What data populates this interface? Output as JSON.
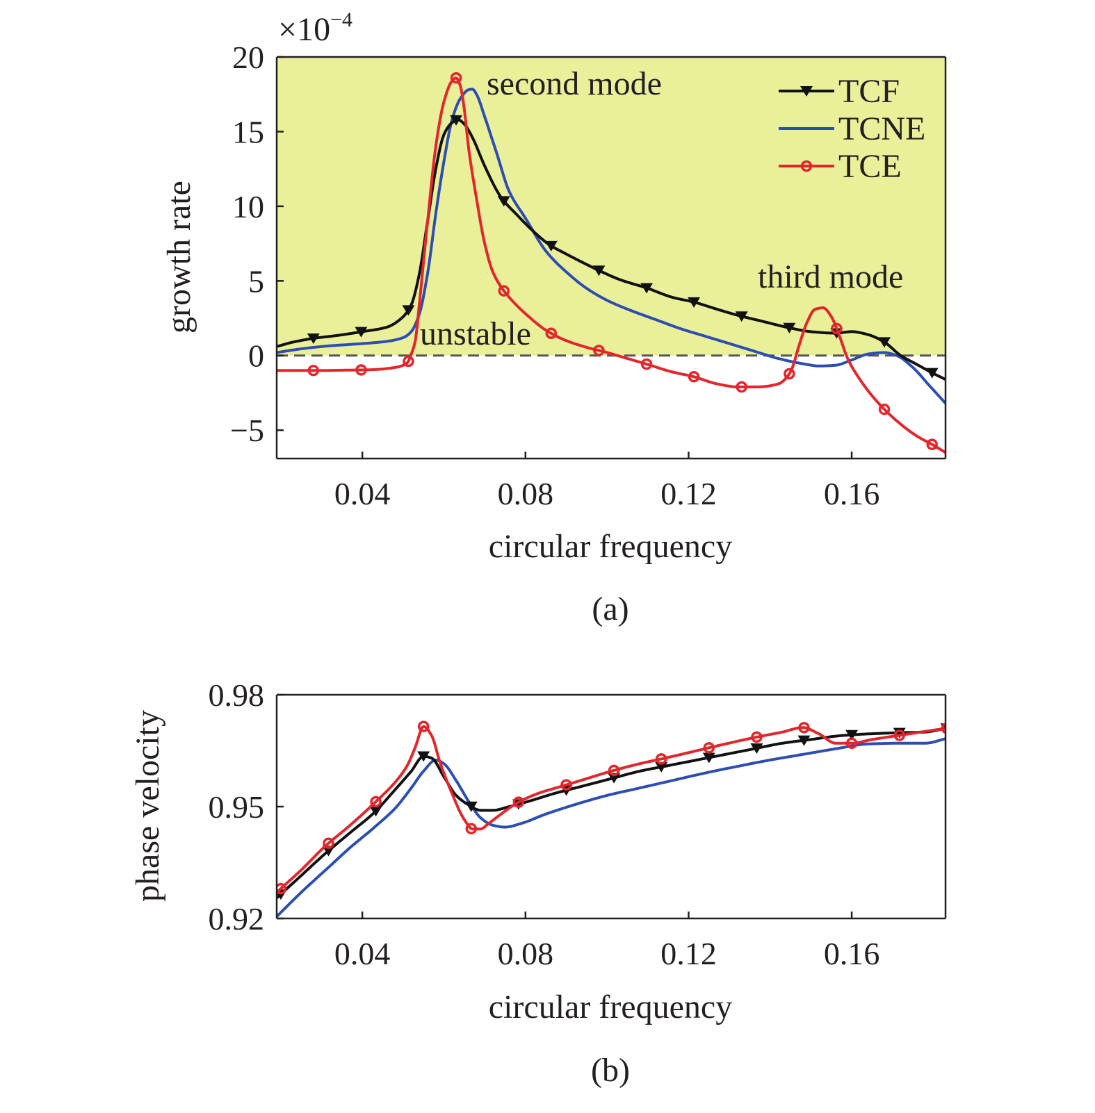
{
  "colors": {
    "unstable_fill": "#eaef9a",
    "TCF": "#111111",
    "TCNE": "#2c4db2",
    "TCE": "#e3262b",
    "zero_line": "#555555",
    "axis": "#231f20"
  },
  "chart_data": [
    {
      "type": "line",
      "caption": "(a)",
      "xlabel": "circular frequency",
      "ylabel": "growth rate",
      "y_multiplier": "×10",
      "y_exponent": "−4",
      "xlim": [
        0.019,
        0.183
      ],
      "ylim": [
        -6.9,
        20
      ],
      "xticks": [
        0.04,
        0.08,
        0.12,
        0.16
      ],
      "xtick_labels": [
        "0.04",
        "0.08",
        "0.12",
        "0.16"
      ],
      "yticks": [
        -5,
        0,
        5,
        10,
        15,
        20
      ],
      "ytick_labels": [
        "−5",
        "0",
        "5",
        "10",
        "15",
        "20"
      ],
      "shaded_region": {
        "label": "unstable",
        "y_from": 0,
        "y_to": 20
      },
      "zero_line": true,
      "annotations": [
        {
          "text": "second mode",
          "x": 0.077,
          "y": 18.1
        },
        {
          "text": "third mode",
          "x": 0.1432,
          "y": 5.0
        },
        {
          "text": "unstable",
          "x": 0.0525,
          "y": 1.0
        }
      ],
      "legend": {
        "position": "top-right",
        "entries": [
          "TCF",
          "TCNE",
          "TCE"
        ]
      },
      "series": [
        {
          "name": "TCF",
          "marker": "triangle-down",
          "x": [
            0.019,
            0.023,
            0.028,
            0.034,
            0.04,
            0.046,
            0.05,
            0.052,
            0.054,
            0.056,
            0.058,
            0.06,
            0.062,
            0.0635,
            0.065,
            0.067,
            0.07,
            0.074,
            0.078,
            0.082,
            0.086,
            0.09,
            0.095,
            0.098,
            0.103,
            0.11,
            0.116,
            0.121,
            0.127,
            0.132,
            0.138,
            0.144,
            0.15,
            0.156,
            0.16,
            0.164,
            0.168,
            0.172,
            0.176,
            0.18,
            0.183
          ],
          "y": [
            0.6,
            0.9,
            1.15,
            1.35,
            1.6,
            1.9,
            2.6,
            3.4,
            5.5,
            9.0,
            12.5,
            14.8,
            15.6,
            15.8,
            15.5,
            14.6,
            12.7,
            10.6,
            9.4,
            8.3,
            7.4,
            6.8,
            6.1,
            5.7,
            5.1,
            4.5,
            3.9,
            3.6,
            3.1,
            2.7,
            2.3,
            1.9,
            1.6,
            1.5,
            1.6,
            1.4,
            0.9,
            0.0,
            -0.6,
            -1.2,
            -1.6
          ],
          "marker_x": [
            0.028,
            0.0397,
            0.0513,
            0.063,
            0.0747,
            0.0863,
            0.098,
            0.1097,
            0.1213,
            0.133,
            0.1447,
            0.1563,
            0.168,
            0.1797
          ]
        },
        {
          "name": "TCNE",
          "marker": "none",
          "x": [
            0.019,
            0.025,
            0.032,
            0.04,
            0.046,
            0.05,
            0.052,
            0.054,
            0.056,
            0.058,
            0.06,
            0.062,
            0.064,
            0.066,
            0.067,
            0.068,
            0.07,
            0.073,
            0.076,
            0.08,
            0.085,
            0.09,
            0.095,
            0.1,
            0.106,
            0.112,
            0.118,
            0.124,
            0.13,
            0.136,
            0.142,
            0.148,
            0.152,
            0.156,
            0.16,
            0.164,
            0.168,
            0.171,
            0.175,
            0.179,
            0.183
          ],
          "y": [
            0.2,
            0.45,
            0.65,
            0.8,
            0.95,
            1.2,
            1.6,
            2.8,
            5.5,
            9.5,
            13.0,
            15.8,
            17.2,
            17.8,
            17.85,
            17.5,
            16.0,
            13.5,
            11.0,
            9.2,
            7.0,
            5.6,
            4.5,
            3.7,
            3.0,
            2.4,
            1.8,
            1.3,
            0.8,
            0.3,
            -0.2,
            -0.55,
            -0.7,
            -0.65,
            -0.3,
            0.1,
            0.2,
            0.0,
            -0.8,
            -2.0,
            -3.2
          ],
          "marker_x": []
        },
        {
          "name": "TCE",
          "marker": "circle",
          "x": [
            0.019,
            0.025,
            0.03,
            0.036,
            0.042,
            0.048,
            0.051,
            0.052,
            0.053,
            0.054,
            0.056,
            0.058,
            0.06,
            0.062,
            0.063,
            0.064,
            0.065,
            0.066,
            0.068,
            0.07,
            0.072,
            0.074,
            0.077,
            0.08,
            0.085,
            0.09,
            0.095,
            0.1,
            0.105,
            0.11,
            0.116,
            0.121,
            0.127,
            0.132,
            0.137,
            0.142,
            0.145,
            0.147,
            0.149,
            0.151,
            0.153,
            0.155,
            0.157,
            0.159,
            0.162,
            0.165,
            0.168,
            0.172,
            0.176,
            0.18,
            0.183
          ],
          "y": [
            -1.0,
            -1.0,
            -1.0,
            -0.98,
            -0.95,
            -0.8,
            -0.5,
            0.1,
            1.0,
            3.5,
            9.0,
            14.0,
            17.0,
            18.4,
            18.6,
            18.1,
            16.5,
            14.0,
            10.5,
            7.5,
            5.6,
            4.6,
            3.6,
            2.8,
            1.7,
            1.0,
            0.55,
            0.2,
            -0.2,
            -0.6,
            -1.1,
            -1.4,
            -1.9,
            -2.1,
            -2.1,
            -1.9,
            -1.1,
            0.6,
            2.2,
            3.1,
            3.2,
            2.6,
            1.3,
            -0.2,
            -1.6,
            -2.7,
            -3.6,
            -4.6,
            -5.4,
            -6.0,
            -6.5
          ],
          "marker_x": [
            0.028,
            0.0397,
            0.0513,
            0.063,
            0.0747,
            0.0863,
            0.098,
            0.1097,
            0.1213,
            0.133,
            0.1447,
            0.1563,
            0.168,
            0.1797
          ]
        }
      ]
    },
    {
      "type": "line",
      "caption": "(b)",
      "xlabel": "circular frequency",
      "ylabel": "phase velocity",
      "xlim": [
        0.019,
        0.183
      ],
      "ylim": [
        0.92,
        0.98
      ],
      "xticks": [
        0.04,
        0.08,
        0.12,
        0.16
      ],
      "xtick_labels": [
        "0.04",
        "0.08",
        "0.12",
        "0.16"
      ],
      "yticks": [
        0.92,
        0.95,
        0.98
      ],
      "ytick_labels": [
        "0.92",
        "0.95",
        "0.98"
      ],
      "series": [
        {
          "name": "TCF",
          "marker": "triangle-down",
          "x": [
            0.019,
            0.025,
            0.031,
            0.037,
            0.043,
            0.048,
            0.052,
            0.055,
            0.057,
            0.06,
            0.063,
            0.066,
            0.069,
            0.072,
            0.076,
            0.081,
            0.087,
            0.094,
            0.101,
            0.108,
            0.115,
            0.122,
            0.129,
            0.136,
            0.143,
            0.15,
            0.157,
            0.164,
            0.171,
            0.178,
            0.183
          ],
          "y": [
            0.9255,
            0.9315,
            0.9375,
            0.943,
            0.9485,
            0.9545,
            0.9595,
            0.9635,
            0.963,
            0.958,
            0.953,
            0.9505,
            0.949,
            0.949,
            0.95,
            0.9515,
            0.9535,
            0.9555,
            0.9575,
            0.9595,
            0.961,
            0.9625,
            0.964,
            0.9655,
            0.967,
            0.968,
            0.969,
            0.9695,
            0.9698,
            0.97,
            0.971
          ],
          "marker_x": [
            0.02,
            0.0317,
            0.0433,
            0.055,
            0.0667,
            0.0783,
            0.09,
            0.1017,
            0.1133,
            0.125,
            0.1367,
            0.1483,
            0.16,
            0.1717,
            0.1833
          ]
        },
        {
          "name": "TCNE",
          "marker": "none",
          "x": [
            0.019,
            0.025,
            0.031,
            0.037,
            0.043,
            0.048,
            0.052,
            0.055,
            0.058,
            0.06,
            0.063,
            0.066,
            0.069,
            0.072,
            0.075,
            0.079,
            0.085,
            0.092,
            0.1,
            0.108,
            0.116,
            0.124,
            0.132,
            0.14,
            0.148,
            0.156,
            0.164,
            0.172,
            0.178,
            0.183
          ],
          "y": [
            0.9205,
            0.927,
            0.933,
            0.939,
            0.9445,
            0.9495,
            0.955,
            0.9595,
            0.9625,
            0.9615,
            0.957,
            0.9515,
            0.947,
            0.945,
            0.9445,
            0.9455,
            0.948,
            0.9505,
            0.953,
            0.955,
            0.957,
            0.959,
            0.9608,
            0.9625,
            0.964,
            0.9655,
            0.9668,
            0.967,
            0.967,
            0.9682
          ],
          "marker_x": []
        },
        {
          "name": "TCE",
          "marker": "circle",
          "x": [
            0.019,
            0.025,
            0.031,
            0.037,
            0.043,
            0.048,
            0.051,
            0.053,
            0.055,
            0.057,
            0.059,
            0.062,
            0.065,
            0.067,
            0.069,
            0.071,
            0.074,
            0.078,
            0.083,
            0.089,
            0.095,
            0.101,
            0.108,
            0.115,
            0.122,
            0.129,
            0.136,
            0.143,
            0.148,
            0.152,
            0.156,
            0.16,
            0.165,
            0.171,
            0.177,
            0.183
          ],
          "y": [
            0.927,
            0.933,
            0.9395,
            0.945,
            0.951,
            0.9565,
            0.961,
            0.966,
            0.9715,
            0.969,
            0.962,
            0.9535,
            0.9465,
            0.944,
            0.944,
            0.9455,
            0.948,
            0.951,
            0.9535,
            0.9555,
            0.9575,
            0.9595,
            0.9615,
            0.9632,
            0.965,
            0.9668,
            0.9685,
            0.97,
            0.9712,
            0.9695,
            0.967,
            0.967,
            0.968,
            0.969,
            0.97,
            0.971
          ],
          "marker_x": [
            0.02,
            0.0317,
            0.0433,
            0.055,
            0.0667,
            0.0783,
            0.09,
            0.1017,
            0.1133,
            0.125,
            0.1367,
            0.1483,
            0.16,
            0.1717,
            0.1833
          ]
        }
      ]
    }
  ]
}
